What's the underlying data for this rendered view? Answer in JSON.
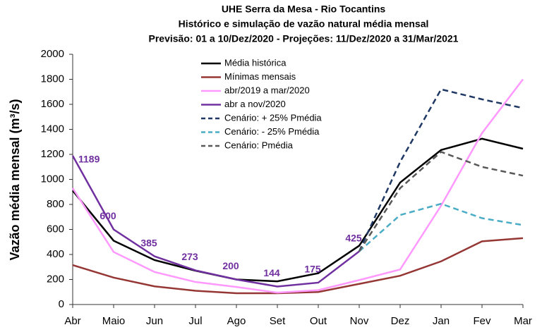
{
  "chart_data": {
    "type": "line",
    "title": "UHE Serra da Mesa - Rio Tocantins",
    "subtitle": "Histórico e simulação de vazão natural média mensal",
    "subtitle2": "Previsão: 01 a 10/Dez/2020 - Projeções:  11/Dez/2020 a 31/Mar/2021",
    "y_label": "Vazão média mensal (m³/s)",
    "categories": [
      "Abr",
      "Maio",
      "Jun",
      "Jul",
      "Ago",
      "Set",
      "Out",
      "Nov",
      "Dez",
      "Jan",
      "Fev",
      "Mar"
    ],
    "ylim": [
      0,
      2000
    ],
    "yticks": [
      0,
      200,
      400,
      600,
      800,
      1000,
      1200,
      1400,
      1600,
      1800,
      2000
    ],
    "legend": "top-center",
    "series": [
      {
        "name": "Média histórica",
        "color": "#000000",
        "dashed": false,
        "values": [
          910,
          510,
          355,
          270,
          200,
          185,
          250,
          470,
          975,
          1235,
          1325,
          1245
        ]
      },
      {
        "name": "Mínimas mensais",
        "color": "#953735",
        "dashed": false,
        "values": [
          315,
          215,
          145,
          110,
          90,
          90,
          100,
          165,
          230,
          345,
          505,
          530
        ]
      },
      {
        "name": "abr/2019 a mar/2020",
        "color": "#ff99ff",
        "dashed": false,
        "values": [
          930,
          420,
          260,
          180,
          140,
          95,
          115,
          195,
          280,
          790,
          1370,
          1800
        ]
      },
      {
        "name": "abr a nov/2020",
        "color": "#7030a0",
        "dashed": false,
        "show_values": true,
        "values": [
          1189,
          600,
          385,
          273,
          200,
          144,
          175,
          425,
          null,
          null,
          null,
          null
        ]
      },
      {
        "name": "Cenário: + 25% Pmédia",
        "color": "#1f3864",
        "dashed": true,
        "values": [
          null,
          null,
          null,
          null,
          null,
          null,
          null,
          425,
          1140,
          1720,
          1640,
          1570
        ]
      },
      {
        "name": "Cenário: - 25% Pmédia",
        "color": "#4bacc6",
        "dashed": true,
        "values": [
          null,
          null,
          null,
          null,
          null,
          null,
          null,
          425,
          715,
          805,
          690,
          635
        ]
      },
      {
        "name": "Cenário: Pmédia",
        "color": "#595959",
        "dashed": true,
        "values": [
          null,
          null,
          null,
          null,
          null,
          null,
          null,
          425,
          930,
          1220,
          1100,
          1030
        ]
      }
    ]
  }
}
